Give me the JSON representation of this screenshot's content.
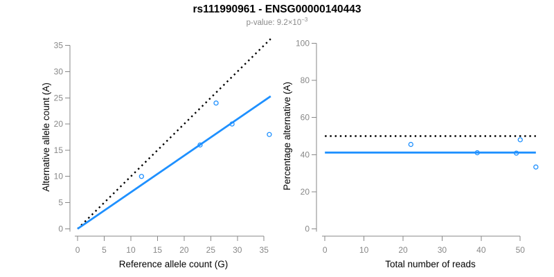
{
  "header": {
    "title": "rs111990961 - ENSG00000140443",
    "p_value_label": "p-value: 9.2×10",
    "p_value_exponent": "−3"
  },
  "colors": {
    "accent_blue": "#1E90FF",
    "line_black": "#000000",
    "axis_gray": "#878787",
    "text_black": "#000000",
    "subtitle_gray": "#8a8a8a"
  },
  "chart_data": [
    {
      "type": "scatter",
      "panel": "left",
      "title": "",
      "xlabel": "Reference allele count (G)",
      "ylabel": "Alternative allele count (A)",
      "xlim": [
        0,
        36
      ],
      "ylim": [
        0,
        35
      ],
      "xticks": [
        0,
        5,
        10,
        15,
        20,
        25,
        30,
        35
      ],
      "yticks": [
        0,
        5,
        10,
        15,
        20,
        25,
        30,
        35
      ],
      "grid": false,
      "points": [
        [
          12,
          10
        ],
        [
          23,
          16
        ],
        [
          26,
          24
        ],
        [
          29,
          20
        ],
        [
          36,
          18
        ]
      ],
      "lines": [
        {
          "name": "identity-line",
          "style": "dotted",
          "color": "#000000",
          "x1": 0,
          "y1": 0,
          "x2": 36.25,
          "y2": 36.25
        },
        {
          "name": "fitted-ratio-line",
          "style": "solid",
          "color": "#1E90FF",
          "x1": 0,
          "y1": 0,
          "x2": 36.25,
          "y2": 25.3
        }
      ]
    },
    {
      "type": "scatter",
      "panel": "right",
      "title": "",
      "xlabel": "Total number of reads",
      "ylabel": "Percentage alternative (A)",
      "xlim": [
        0,
        54
      ],
      "ylim": [
        0,
        100
      ],
      "xticks": [
        0,
        10,
        20,
        30,
        40,
        50
      ],
      "yticks": [
        0,
        20,
        40,
        60,
        80,
        100
      ],
      "grid": false,
      "points": [
        [
          22,
          45.5
        ],
        [
          39,
          41
        ],
        [
          49,
          40.8
        ],
        [
          50,
          48
        ],
        [
          54,
          33.3
        ]
      ],
      "lines": [
        {
          "name": "expected-50pct-line",
          "style": "dotted",
          "color": "#000000",
          "x1": 0,
          "y1": 50,
          "x2": 54,
          "y2": 50
        },
        {
          "name": "fitted-percentage-line",
          "style": "solid",
          "color": "#1E90FF",
          "x1": 0,
          "y1": 41.1,
          "x2": 54,
          "y2": 41.1
        }
      ]
    }
  ]
}
